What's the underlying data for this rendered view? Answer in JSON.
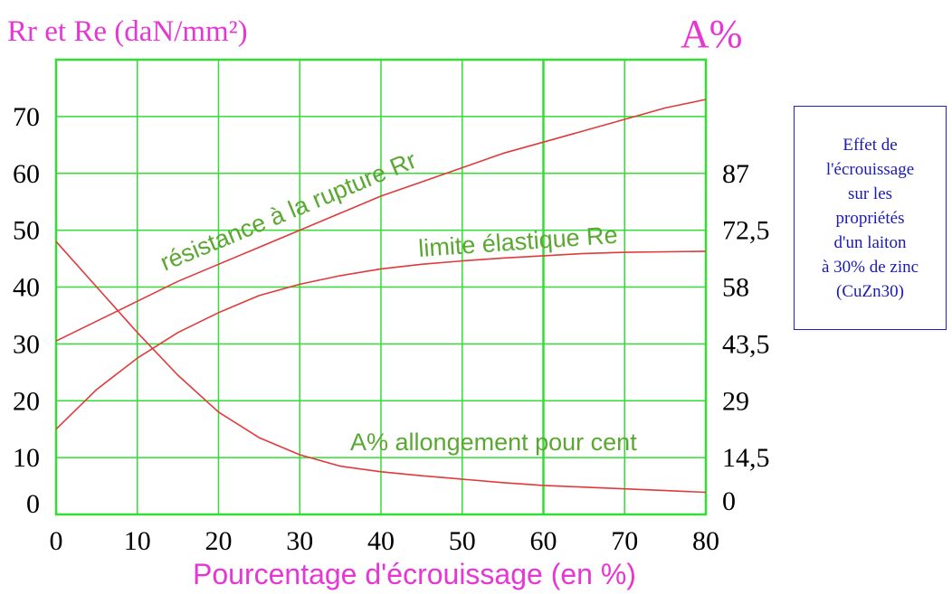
{
  "chart_data": {
    "type": "line",
    "xlabel": "Pourcentage d'écrouissage (en %)",
    "ylabel": "Rr et Re (daN/mm²)",
    "y2label": "A%",
    "xlim": [
      0,
      80
    ],
    "ylim": [
      0,
      80
    ],
    "x_ticks": [
      "0",
      "10",
      "20",
      "30",
      "40",
      "50",
      "60",
      "70",
      "80"
    ],
    "y_ticks": [
      "0",
      "10",
      "20",
      "30",
      "40",
      "50",
      "60",
      "70"
    ],
    "y2_ticks": [
      "0",
      "14,5",
      "29",
      "43,5",
      "58",
      "72,5",
      "87"
    ],
    "y2_tick_positions": [
      0,
      10,
      20,
      30,
      40,
      50,
      60
    ],
    "grid": true,
    "series": [
      {
        "name": "résistance à la rupture Rr",
        "x": [
          0,
          5,
          10,
          15,
          20,
          25,
          30,
          35,
          40,
          45,
          50,
          55,
          60,
          65,
          70,
          75,
          80
        ],
        "y": [
          30.5,
          34,
          37.5,
          41,
          44,
          47,
          50,
          53,
          56,
          58.5,
          61,
          63.5,
          65.5,
          67.5,
          69.5,
          71.5,
          73
        ]
      },
      {
        "name": "limite élastique Re",
        "x": [
          0,
          5,
          10,
          15,
          20,
          25,
          30,
          35,
          40,
          45,
          50,
          55,
          60,
          65,
          70,
          75,
          80
        ],
        "y": [
          15,
          22,
          27.5,
          32,
          35.5,
          38.5,
          40.5,
          42,
          43.2,
          44,
          44.6,
          45.1,
          45.5,
          45.9,
          46.1,
          46.2,
          46.3
        ]
      },
      {
        "name": "A% allongement pour cent",
        "x": [
          0,
          5,
          10,
          15,
          20,
          25,
          30,
          35,
          40,
          45,
          50,
          55,
          60,
          65,
          70,
          75,
          80
        ],
        "y": [
          48,
          40,
          32,
          24.5,
          18,
          13.5,
          10.5,
          8.5,
          7.5,
          6.8,
          6.2,
          5.6,
          5.1,
          4.8,
          4.5,
          4.2,
          3.9
        ]
      }
    ],
    "curve_labels": [
      {
        "text": "résistance à la rupture Rr"
      },
      {
        "text": "limite élastique Re"
      },
      {
        "text": "A% allongement pour cent"
      }
    ],
    "note": "Effet de\nl'écrouissage\nsur les\npropriétés\nd'un laiton\nà 30% de zinc\n(CuZn30)",
    "colors": {
      "curve": "#e03a3a",
      "grid": "#33dd33",
      "axis_title": "#e636d4",
      "curve_label": "#5aa832",
      "note_text": "#1a1ab8",
      "note_border": "#2020c8"
    }
  }
}
